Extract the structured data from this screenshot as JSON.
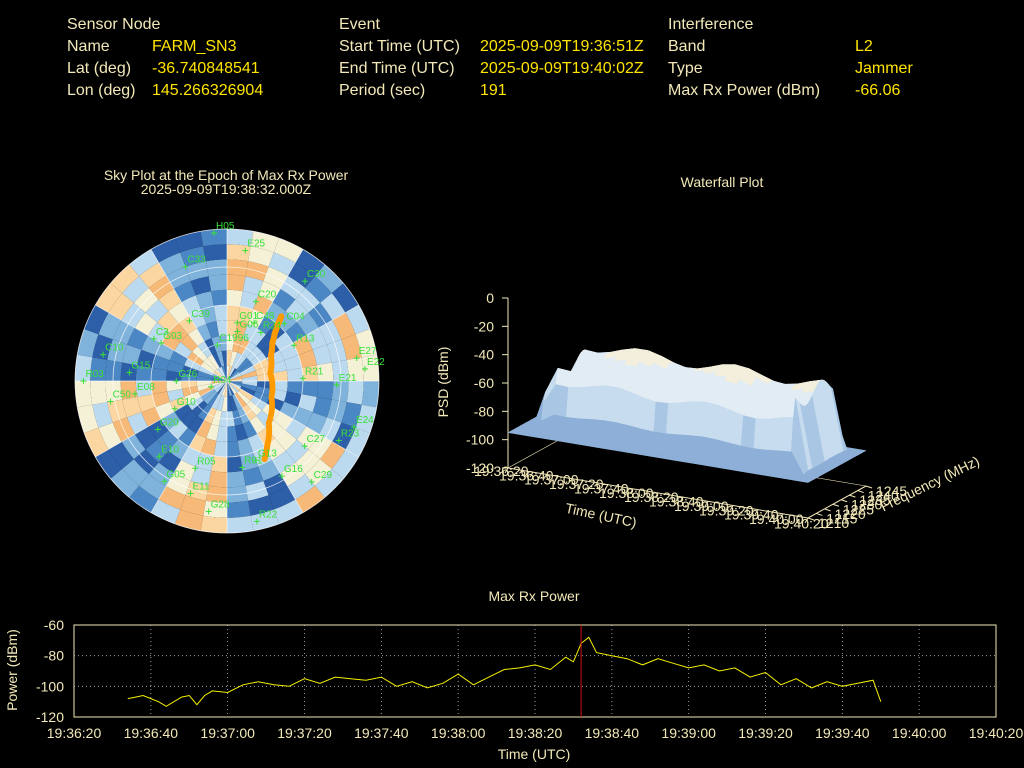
{
  "colors": {
    "background": "#000000",
    "label": "#f2e8b8",
    "value": "#ffe400",
    "sat": "#38e038",
    "track": "#ff9a00",
    "marker": "#d41010",
    "power": "#f5f000",
    "grid": "#bbbbbb"
  },
  "info": {
    "node": {
      "header": "Sensor Node",
      "rows": [
        {
          "label": "Name",
          "value": "FARM_SN3"
        },
        {
          "label": "Lat (deg)",
          "value": "-36.740848541"
        },
        {
          "label": "Lon (deg)",
          "value": "145.266326904"
        }
      ]
    },
    "event": {
      "header": "Event",
      "rows": [
        {
          "label": "Start Time (UTC)",
          "value": "2025-09-09T19:36:51Z"
        },
        {
          "label": "End Time (UTC)",
          "value": "2025-09-09T19:40:02Z"
        },
        {
          "label": "Period (sec)",
          "value": "191"
        }
      ]
    },
    "interference": {
      "header": "Interference",
      "rows": [
        {
          "label": "Band",
          "value": "L2"
        },
        {
          "label": "Type",
          "value": "Jammer"
        },
        {
          "label": "Max Rx Power (dBm)",
          "value": "-66.06"
        }
      ]
    }
  },
  "chart_data": [
    {
      "type": "scatter",
      "name": "skyplot",
      "title": "Sky Plot at the Epoch of Max Rx Power",
      "subtitle": "2025-09-09T19:38:32.000Z",
      "satellites": [
        {
          "id": "H05",
          "az": 355,
          "el": 2
        },
        {
          "id": "E25",
          "az": 8,
          "el": 12
        },
        {
          "id": "C33",
          "az": 340,
          "el": 18
        },
        {
          "id": "C20",
          "az": 20,
          "el": 40
        },
        {
          "id": "C30",
          "az": 38,
          "el": 15
        },
        {
          "id": "C48",
          "az": 25,
          "el": 52
        },
        {
          "id": "C04",
          "az": 45,
          "el": 42
        },
        {
          "id": "G01",
          "az": 10,
          "el": 55
        },
        {
          "id": "R24",
          "az": 35,
          "el": 55
        },
        {
          "id": "C39",
          "az": 328,
          "el": 48
        },
        {
          "id": "G06",
          "az": 12,
          "el": 60
        },
        {
          "id": "C3",
          "az": 300,
          "el": 40
        },
        {
          "id": "G03",
          "az": 300,
          "el": 45
        },
        {
          "id": "C1996",
          "az": 345,
          "el": 68
        },
        {
          "id": "R13",
          "az": 62,
          "el": 45
        },
        {
          "id": "E27",
          "az": 80,
          "el": 12
        },
        {
          "id": "E22",
          "az": 85,
          "el": 8
        },
        {
          "id": "E21",
          "az": 92,
          "el": 25
        },
        {
          "id": "R21",
          "az": 88,
          "el": 45
        },
        {
          "id": "E24",
          "az": 110,
          "el": 10
        },
        {
          "id": "R23",
          "az": 118,
          "el": 15
        },
        {
          "id": "C27",
          "az": 130,
          "el": 30
        },
        {
          "id": "C29",
          "az": 140,
          "el": 12
        },
        {
          "id": "G16",
          "az": 150,
          "el": 25
        },
        {
          "id": "G13",
          "az": 160,
          "el": 40
        },
        {
          "id": "R01",
          "az": 170,
          "el": 38
        },
        {
          "id": "R22",
          "az": 168,
          "el": 5
        },
        {
          "id": "G26",
          "az": 270,
          "el": 60
        },
        {
          "id": "R04",
          "az": 250,
          "el": 80
        },
        {
          "id": "E08",
          "az": 262,
          "el": 35
        },
        {
          "id": "G10",
          "az": 242,
          "el": 55
        },
        {
          "id": "C50",
          "az": 260,
          "el": 20
        },
        {
          "id": "G15",
          "az": 275,
          "el": 32
        },
        {
          "id": "C10",
          "az": 282,
          "el": 15
        },
        {
          "id": "R03",
          "az": 270,
          "el": 5
        },
        {
          "id": "G20",
          "az": 235,
          "el": 40
        },
        {
          "id": "E10",
          "az": 222,
          "el": 30
        },
        {
          "id": "G05",
          "az": 212,
          "el": 20
        },
        {
          "id": "R05",
          "az": 200,
          "el": 35
        },
        {
          "id": "E11",
          "az": 198,
          "el": 20
        },
        {
          "id": "G28",
          "az": 188,
          "el": 12
        }
      ],
      "track": [
        {
          "az": 40,
          "el": 40
        },
        {
          "az": 42,
          "el": 45
        },
        {
          "az": 45,
          "el": 50
        },
        {
          "az": 50,
          "el": 55
        },
        {
          "az": 60,
          "el": 60
        },
        {
          "az": 80,
          "el": 64
        },
        {
          "az": 110,
          "el": 62
        },
        {
          "az": 135,
          "el": 55
        },
        {
          "az": 148,
          "el": 45
        },
        {
          "az": 155,
          "el": 38
        }
      ]
    },
    {
      "type": "area",
      "name": "waterfall",
      "title": "Waterfall Plot",
      "xlabel": "Time (UTC)",
      "ylabel": "Frequency (MHz)",
      "zlabel": "PSD (dBm)",
      "time_ticks": [
        "19:36:20",
        "19:36:40",
        "19:37:00",
        "19:37:20",
        "19:37:40",
        "19:38:00",
        "19:38:20",
        "19:38:40",
        "19:39:00",
        "19:39:20",
        "19:39:40",
        "19:40:00",
        "19:40:20"
      ],
      "freq_ticks": [
        1210,
        1215,
        1220,
        1225,
        1230,
        1235,
        1240,
        1245
      ],
      "psd_ticks": [
        0,
        -20,
        -40,
        -60,
        -80,
        -100,
        -120
      ],
      "marker_time": "19:38:32",
      "freq_range": [
        1210,
        1245
      ],
      "psd_range": [
        -120,
        0
      ]
    },
    {
      "type": "line",
      "name": "maxrxpower",
      "title": "Max Rx Power",
      "xlabel": "Time (UTC)",
      "ylabel": "Power (dBm)",
      "xlim": [
        0,
        240
      ],
      "ylim": [
        -120,
        -60
      ],
      "x_tick_labels": [
        "19:36:20",
        "19:36:40",
        "19:37:00",
        "19:37:20",
        "19:37:40",
        "19:38:00",
        "19:38:20",
        "19:38:40",
        "19:39:00",
        "19:39:20",
        "19:39:40",
        "19:40:00",
        "19:40:20"
      ],
      "y_ticks": [
        -60,
        -80,
        -100,
        -120
      ],
      "marker_x": 132,
      "x": [
        14,
        16,
        18,
        20,
        22,
        24,
        28,
        30,
        32,
        34,
        36,
        40,
        44,
        48,
        52,
        56,
        60,
        64,
        68,
        72,
        76,
        80,
        84,
        88,
        92,
        96,
        100,
        104,
        108,
        112,
        116,
        120,
        124,
        128,
        130,
        132,
        134,
        136,
        140,
        144,
        148,
        152,
        156,
        160,
        164,
        168,
        172,
        176,
        180,
        184,
        188,
        192,
        196,
        200,
        204,
        208,
        210
      ],
      "y": [
        -108,
        -107,
        -106,
        -108,
        -110,
        -113,
        -107,
        -106,
        -112,
        -106,
        -103,
        -104,
        -99,
        -97,
        -99,
        -100,
        -95,
        -98,
        -94,
        -95,
        -96,
        -94,
        -100,
        -97,
        -101,
        -98,
        -92,
        -99,
        -94,
        -89,
        -88,
        -86,
        -89,
        -81,
        -84,
        -72,
        -68,
        -78,
        -80,
        -82,
        -86,
        -82,
        -85,
        -88,
        -86,
        -90,
        -88,
        -94,
        -91,
        -99,
        -95,
        -101,
        -97,
        -100,
        -98,
        -96,
        -110
      ]
    }
  ]
}
